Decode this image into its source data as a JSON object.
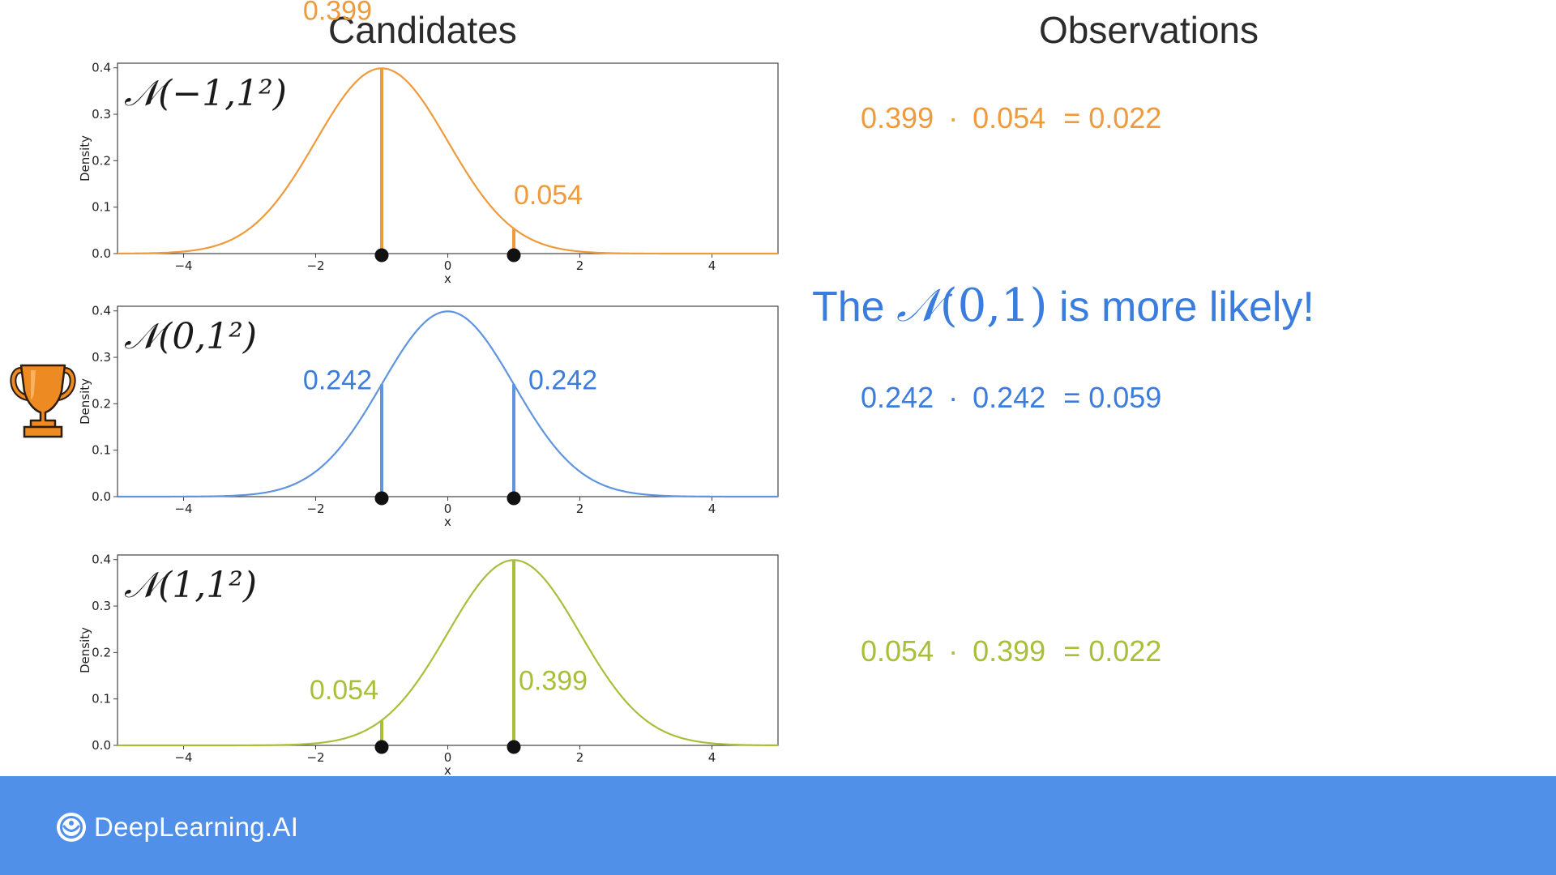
{
  "headings": {
    "candidates": "Candidates",
    "observations": "Observations"
  },
  "headline": {
    "prefix": "The",
    "math_symbol": "𝒩",
    "math_args": "(0,1)",
    "suffix": "is more likely!",
    "color": "#3b7ddd"
  },
  "observations": [
    {
      "a": "0.399",
      "dot": "·",
      "b": "0.054",
      "result": "= 0.022",
      "color": "#ef9a3c"
    },
    {
      "a": "0.242",
      "dot": "·",
      "b": "0.242",
      "result": "= 0.059",
      "color": "#3b7ddd"
    },
    {
      "a": "0.054",
      "dot": "·",
      "b": "0.399",
      "result": "= 0.022",
      "color": "#a9bf3a"
    }
  ],
  "chart_data": [
    {
      "type": "line",
      "label": "𝒩(−1,1²)",
      "mean": -1,
      "sd": 1,
      "color": "#ef9a3c",
      "ylabel": "Density",
      "xlabel": "x",
      "xlim": [
        -5,
        5
      ],
      "ylim": [
        0,
        0.41
      ],
      "xticks": [
        -4,
        -2,
        0,
        2,
        4
      ],
      "xtick_labels": [
        "−4",
        "−2",
        "0",
        "2",
        "4"
      ],
      "yticks": [
        0,
        0.1,
        0.2,
        0.3,
        0.4
      ],
      "ytick_labels": [
        "0.0",
        "0.1",
        "0.2",
        "0.3",
        "0.4"
      ],
      "observations_x": [
        -1,
        1
      ],
      "density_labels": [
        "0.399",
        "0.054"
      ]
    },
    {
      "type": "line",
      "label": "𝒩(0,1²)",
      "mean": 0,
      "sd": 1,
      "color": "#5f95e0",
      "label_color": "#3b7ddd",
      "ylabel": "Density",
      "xlabel": "x",
      "xlim": [
        -5,
        5
      ],
      "ylim": [
        0,
        0.41
      ],
      "xticks": [
        -4,
        -2,
        0,
        2,
        4
      ],
      "xtick_labels": [
        "−4",
        "−2",
        "0",
        "2",
        "4"
      ],
      "yticks": [
        0,
        0.1,
        0.2,
        0.3,
        0.4
      ],
      "ytick_labels": [
        "0.0",
        "0.1",
        "0.2",
        "0.3",
        "0.4"
      ],
      "observations_x": [
        -1,
        1
      ],
      "density_labels": [
        "0.242",
        "0.242"
      ],
      "winner": true
    },
    {
      "type": "line",
      "label": "𝒩(1,1²)",
      "mean": 1,
      "sd": 1,
      "color": "#a9bf3a",
      "ylabel": "Density",
      "xlabel": "x",
      "xlim": [
        -5,
        5
      ],
      "ylim": [
        0,
        0.41
      ],
      "xticks": [
        -4,
        -2,
        0,
        2,
        4
      ],
      "xtick_labels": [
        "−4",
        "−2",
        "0",
        "2",
        "4"
      ],
      "yticks": [
        0,
        0.1,
        0.2,
        0.3,
        0.4
      ],
      "ytick_labels": [
        "0.0",
        "0.1",
        "0.2",
        "0.3",
        "0.4"
      ],
      "observations_x": [
        -1,
        1
      ],
      "density_labels": [
        "0.054",
        "0.399"
      ]
    }
  ],
  "trophy": {
    "icon": "trophy-icon",
    "color": "#ee8a22"
  },
  "footer": {
    "brand": "DeepLearning.AI",
    "logo_icon": "deeplearning-logo-icon",
    "color": "#5090e8"
  }
}
